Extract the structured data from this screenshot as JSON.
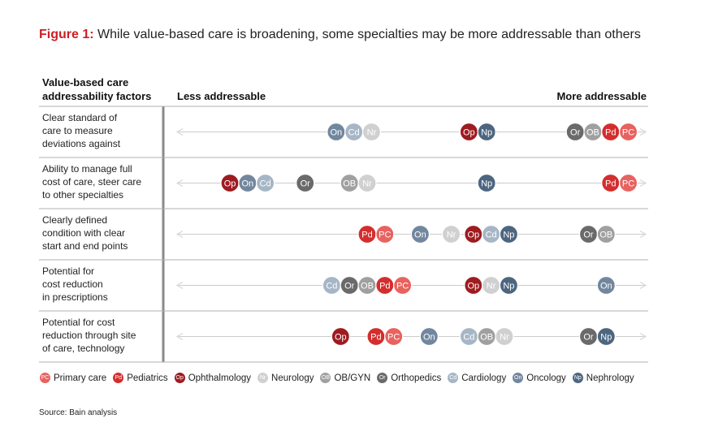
{
  "title": {
    "lead": "Figure 1:",
    "text": " While value-based care is broadening, some specialties may be more addressable than others"
  },
  "headers": {
    "factors": "Value-based care\naddressability factors",
    "less": "Less addressable",
    "more": "More addressable"
  },
  "colors": {
    "PC": "#e8625f",
    "Pd": "#d42d2e",
    "Op": "#9e1b20",
    "Nr": "#d0d0d0",
    "OB": "#a0a0a0",
    "Or": "#6a6a6a",
    "Cd": "#a6b6c6",
    "On": "#72879e",
    "Np": "#4d6680"
  },
  "legend": [
    {
      "code": "PC",
      "label": "Primary care"
    },
    {
      "code": "Pd",
      "label": "Pediatrics"
    },
    {
      "code": "Op",
      "label": "Ophthalmology"
    },
    {
      "code": "Nr",
      "label": "Neurology"
    },
    {
      "code": "OB",
      "label": "OB/GYN"
    },
    {
      "code": "Or",
      "label": "Orthopedics"
    },
    {
      "code": "Cd",
      "label": "Cardiology"
    },
    {
      "code": "On",
      "label": "Oncology"
    },
    {
      "code": "Np",
      "label": "Nephrology"
    }
  ],
  "source": "Source: Bain analysis",
  "chart_data": {
    "type": "scatter",
    "x_scale": "ordinal position from Less addressable (0) to More addressable (1)",
    "rows": [
      {
        "label": "Clear standard of\ncare to measure\ndeviations against",
        "points": [
          {
            "code": "On",
            "x": 0.33
          },
          {
            "code": "Cd",
            "x": 0.37
          },
          {
            "code": "Nr",
            "x": 0.41
          },
          {
            "code": "Op",
            "x": 0.63
          },
          {
            "code": "Np",
            "x": 0.67
          },
          {
            "code": "Or",
            "x": 0.87
          },
          {
            "code": "OB",
            "x": 0.91
          },
          {
            "code": "Pd",
            "x": 0.95
          },
          {
            "code": "PC",
            "x": 0.99
          }
        ]
      },
      {
        "label": "Ability to manage full\ncost of care, steer care\nto other specialties",
        "points": [
          {
            "code": "Op",
            "x": 0.09
          },
          {
            "code": "On",
            "x": 0.13
          },
          {
            "code": "Cd",
            "x": 0.17
          },
          {
            "code": "Or",
            "x": 0.26
          },
          {
            "code": "OB",
            "x": 0.36
          },
          {
            "code": "Nr",
            "x": 0.4
          },
          {
            "code": "Np",
            "x": 0.67
          },
          {
            "code": "Pd",
            "x": 0.95
          },
          {
            "code": "PC",
            "x": 0.99
          }
        ]
      },
      {
        "label": "Clearly defined\ncondition with clear\nstart and end points",
        "points": [
          {
            "code": "Pd",
            "x": 0.4
          },
          {
            "code": "PC",
            "x": 0.44
          },
          {
            "code": "On",
            "x": 0.52
          },
          {
            "code": "Nr",
            "x": 0.59
          },
          {
            "code": "Op",
            "x": 0.64
          },
          {
            "code": "Cd",
            "x": 0.68
          },
          {
            "code": "Np",
            "x": 0.72
          },
          {
            "code": "Or",
            "x": 0.9
          },
          {
            "code": "OB",
            "x": 0.94
          }
        ]
      },
      {
        "label": "Potential for\ncost reduction\nin prescriptions",
        "points": [
          {
            "code": "Cd",
            "x": 0.32
          },
          {
            "code": "Or",
            "x": 0.36
          },
          {
            "code": "OB",
            "x": 0.4
          },
          {
            "code": "Pd",
            "x": 0.44
          },
          {
            "code": "PC",
            "x": 0.48
          },
          {
            "code": "Op",
            "x": 0.64
          },
          {
            "code": "Nr",
            "x": 0.68
          },
          {
            "code": "Np",
            "x": 0.72
          },
          {
            "code": "On",
            "x": 0.94
          }
        ]
      },
      {
        "label": "Potential for cost\nreduction through site\nof care, technology",
        "points": [
          {
            "code": "Op",
            "x": 0.34
          },
          {
            "code": "Pd",
            "x": 0.42
          },
          {
            "code": "PC",
            "x": 0.46
          },
          {
            "code": "On",
            "x": 0.54
          },
          {
            "code": "Cd",
            "x": 0.63
          },
          {
            "code": "OB",
            "x": 0.67
          },
          {
            "code": "Nr",
            "x": 0.71
          },
          {
            "code": "Or",
            "x": 0.9
          },
          {
            "code": "Np",
            "x": 0.94
          }
        ]
      }
    ]
  }
}
